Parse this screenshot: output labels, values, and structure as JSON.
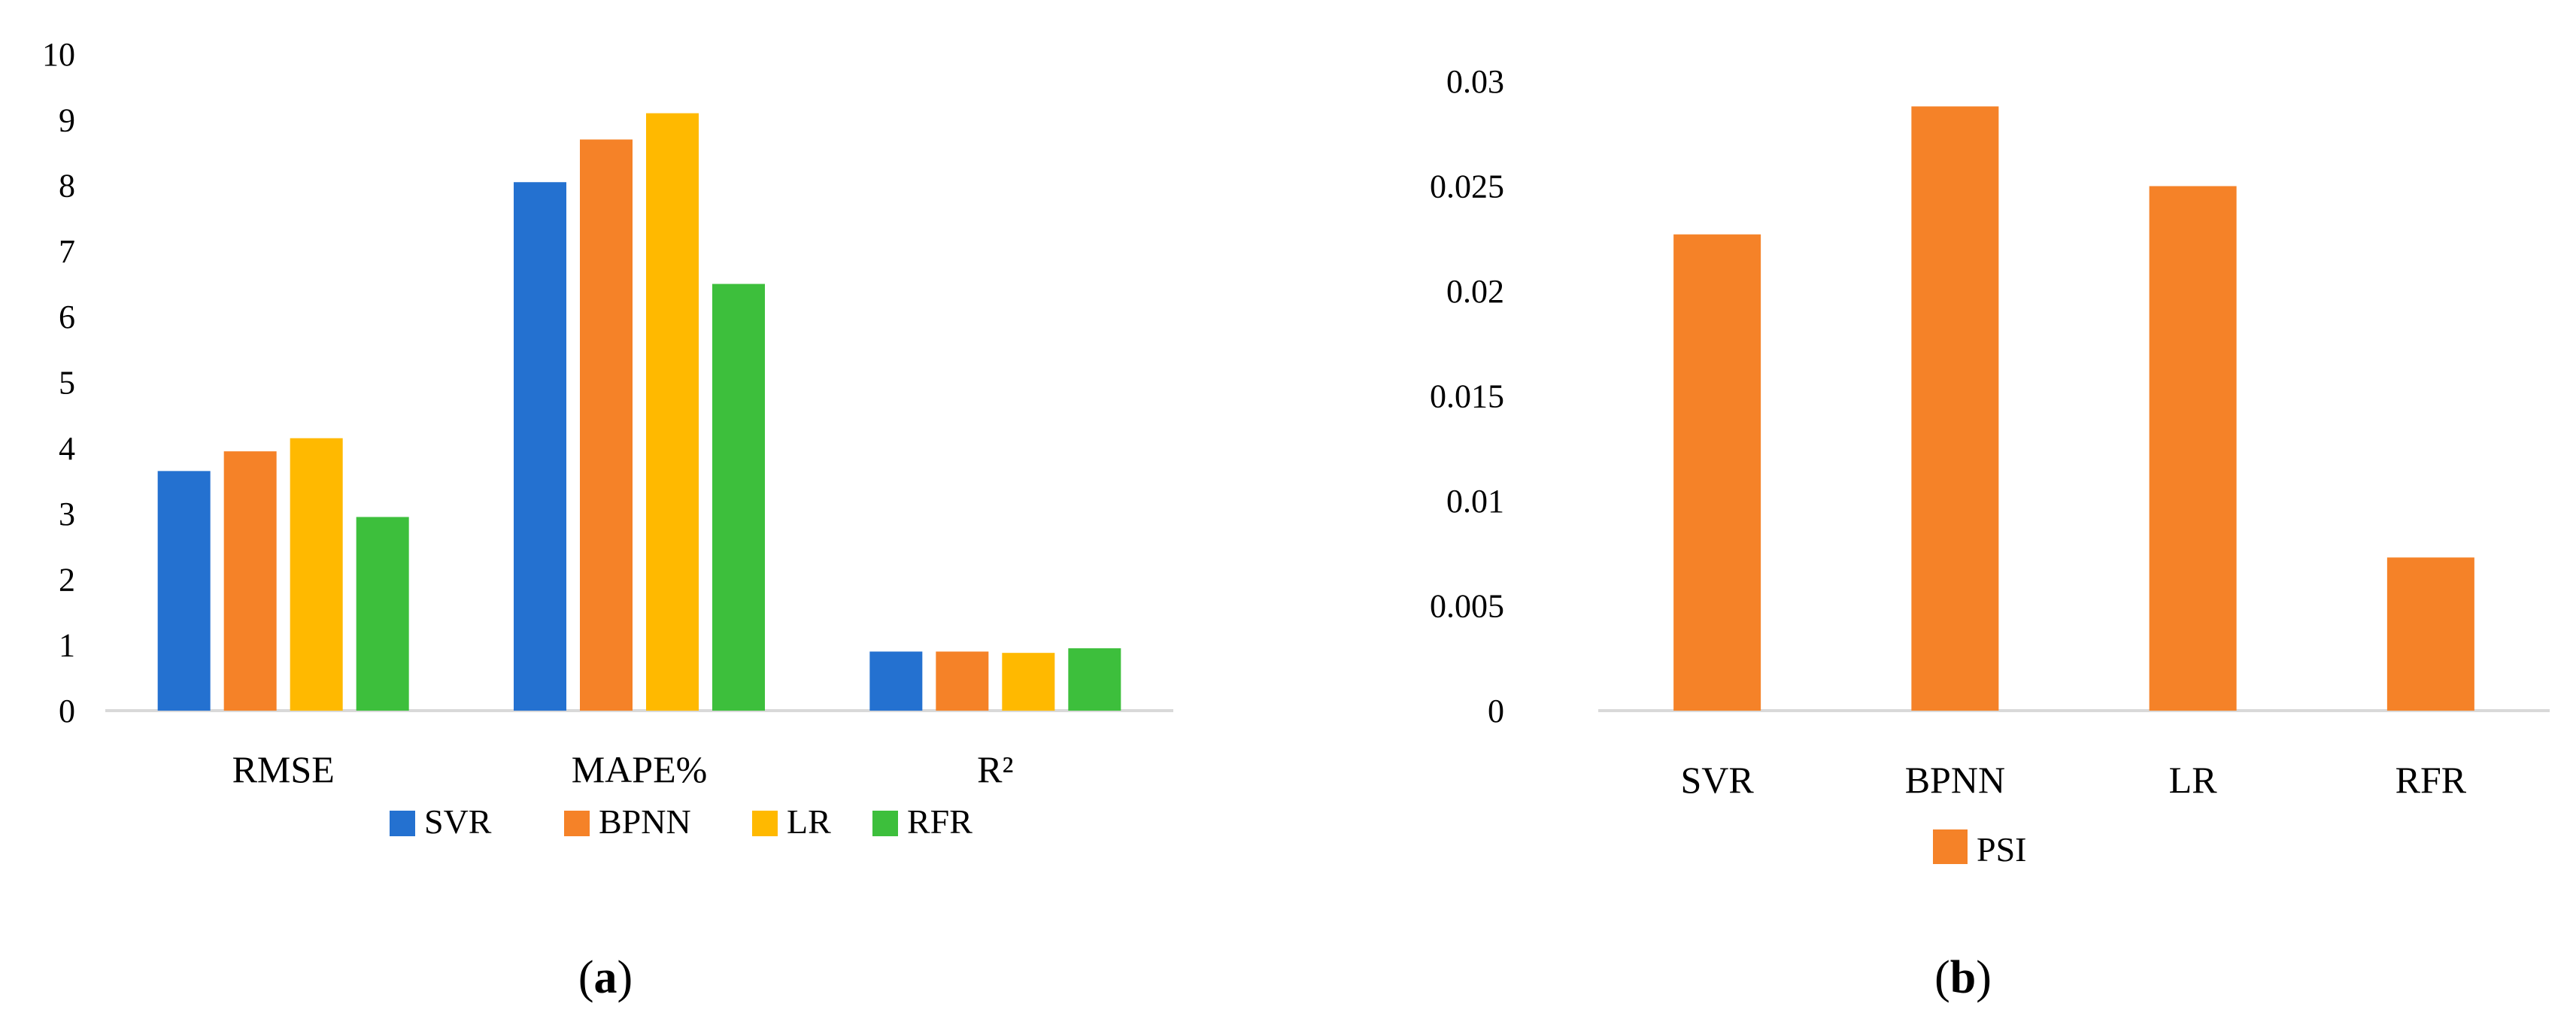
{
  "chart_data": [
    {
      "type": "bar",
      "panel_label": "a",
      "categories": [
        "RMSE",
        "MAPE%",
        "R²"
      ],
      "series": [
        {
          "name": "SVR",
          "color": "#2471d0",
          "values": [
            3.65,
            8.05,
            0.9
          ]
        },
        {
          "name": "BPNN",
          "color": "#f58228",
          "values": [
            3.95,
            8.7,
            0.9
          ]
        },
        {
          "name": "LR",
          "color": "#ffb900",
          "values": [
            4.15,
            9.1,
            0.88
          ]
        },
        {
          "name": "RFR",
          "color": "#3dbf3c",
          "values": [
            2.95,
            6.5,
            0.95
          ]
        }
      ],
      "ylim": [
        0,
        10
      ],
      "yticks": [
        "0",
        "1",
        "2",
        "3",
        "4",
        "5",
        "6",
        "7",
        "8",
        "9",
        "10"
      ],
      "grid": false,
      "legend_position": "bottom"
    },
    {
      "type": "bar",
      "panel_label": "b",
      "categories": [
        "SVR",
        "BPNN",
        "LR",
        "RFR"
      ],
      "series": [
        {
          "name": "PSI",
          "color": "#f58228",
          "values": [
            0.0227,
            0.0288,
            0.025,
            0.0073
          ]
        }
      ],
      "ylim": [
        0,
        0.03
      ],
      "yticks": [
        "0",
        "0.005",
        "0.01",
        "0.015",
        "0.02",
        "0.025",
        "0.03"
      ],
      "grid": false,
      "legend_position": "bottom"
    }
  ]
}
